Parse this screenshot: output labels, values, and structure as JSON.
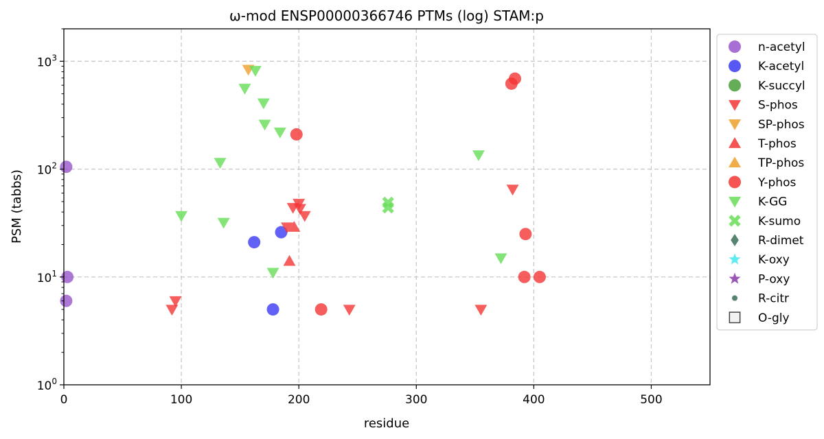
{
  "chart_data": {
    "type": "scatter",
    "title": "ω-mod ENSP00000366746 PTMs (log) STAM:p",
    "xlabel": "residue",
    "ylabel": "PSM (tabbs)",
    "xlim": [
      0,
      550
    ],
    "ylim": [
      1,
      2000
    ],
    "yscale": "log",
    "grid": true,
    "legend_position": "outside-right",
    "x_ticks": [
      "0",
      "100",
      "200",
      "300",
      "400",
      "500"
    ],
    "y_ticks": [
      {
        "base": "10",
        "exp": "0",
        "value": 1
      },
      {
        "base": "10",
        "exp": "1",
        "value": 10
      },
      {
        "base": "10",
        "exp": "2",
        "value": 100
      },
      {
        "base": "10",
        "exp": "3",
        "value": 1000
      }
    ],
    "series": [
      {
        "name": "n-acetyl",
        "marker": "circle",
        "color": "#9955cc",
        "points": [
          [
            2,
            105
          ],
          [
            3,
            10
          ],
          [
            2,
            6
          ]
        ]
      },
      {
        "name": "K-acetyl",
        "marker": "circle",
        "color": "#3a3af2",
        "points": [
          [
            162,
            21
          ],
          [
            185,
            26
          ],
          [
            178,
            5
          ]
        ]
      },
      {
        "name": "K-succyl",
        "marker": "circle",
        "color": "#4a9e38",
        "points": []
      },
      {
        "name": "S-phos",
        "marker": "triangle-down",
        "color": "#f43535",
        "points": [
          [
            95,
            6
          ],
          [
            92,
            5
          ],
          [
            190,
            29
          ],
          [
            195,
            44
          ],
          [
            200,
            48
          ],
          [
            201,
            43
          ],
          [
            205,
            37
          ],
          [
            243,
            5
          ],
          [
            355,
            5
          ],
          [
            382,
            65
          ]
        ]
      },
      {
        "name": "SP-phos",
        "marker": "triangle-down",
        "color": "#eda02a",
        "points": [
          [
            157,
            840
          ]
        ]
      },
      {
        "name": "T-phos",
        "marker": "triangle-up",
        "color": "#f43535",
        "points": [
          [
            192,
            14
          ],
          [
            196,
            29
          ]
        ]
      },
      {
        "name": "TP-phos",
        "marker": "triangle-up",
        "color": "#eda02a",
        "points": []
      },
      {
        "name": "Y-phos",
        "marker": "circle",
        "color": "#f43535",
        "points": [
          [
            198,
            210
          ],
          [
            381,
            620
          ],
          [
            384,
            690
          ],
          [
            393,
            25
          ],
          [
            392,
            10
          ],
          [
            405,
            10
          ],
          [
            219,
            5
          ]
        ]
      },
      {
        "name": "K-GG",
        "marker": "triangle-down",
        "color": "#66dd55",
        "points": [
          [
            163,
            820
          ],
          [
            154,
            560
          ],
          [
            170,
            410
          ],
          [
            171,
            260
          ],
          [
            184,
            220
          ],
          [
            133,
            115
          ],
          [
            353,
            135
          ],
          [
            100,
            37
          ],
          [
            136,
            32
          ],
          [
            178,
            11
          ],
          [
            372,
            15
          ]
        ]
      },
      {
        "name": "K-sumo",
        "marker": "x",
        "color": "#66dd55",
        "points": [
          [
            276,
            49
          ],
          [
            276,
            44
          ]
        ]
      },
      {
        "name": "R-dimet",
        "marker": "diamond",
        "color": "#3a6e58",
        "points": []
      },
      {
        "name": "K-oxy",
        "marker": "star",
        "color": "#44e8ee",
        "points": []
      },
      {
        "name": "P-oxy",
        "marker": "star",
        "color": "#8a3aa8",
        "points": []
      },
      {
        "name": "R-citr",
        "marker": "small-circle",
        "color": "#3a6e58",
        "points": []
      },
      {
        "name": "O-gly",
        "marker": "square",
        "color": "#444444",
        "points": []
      }
    ]
  }
}
